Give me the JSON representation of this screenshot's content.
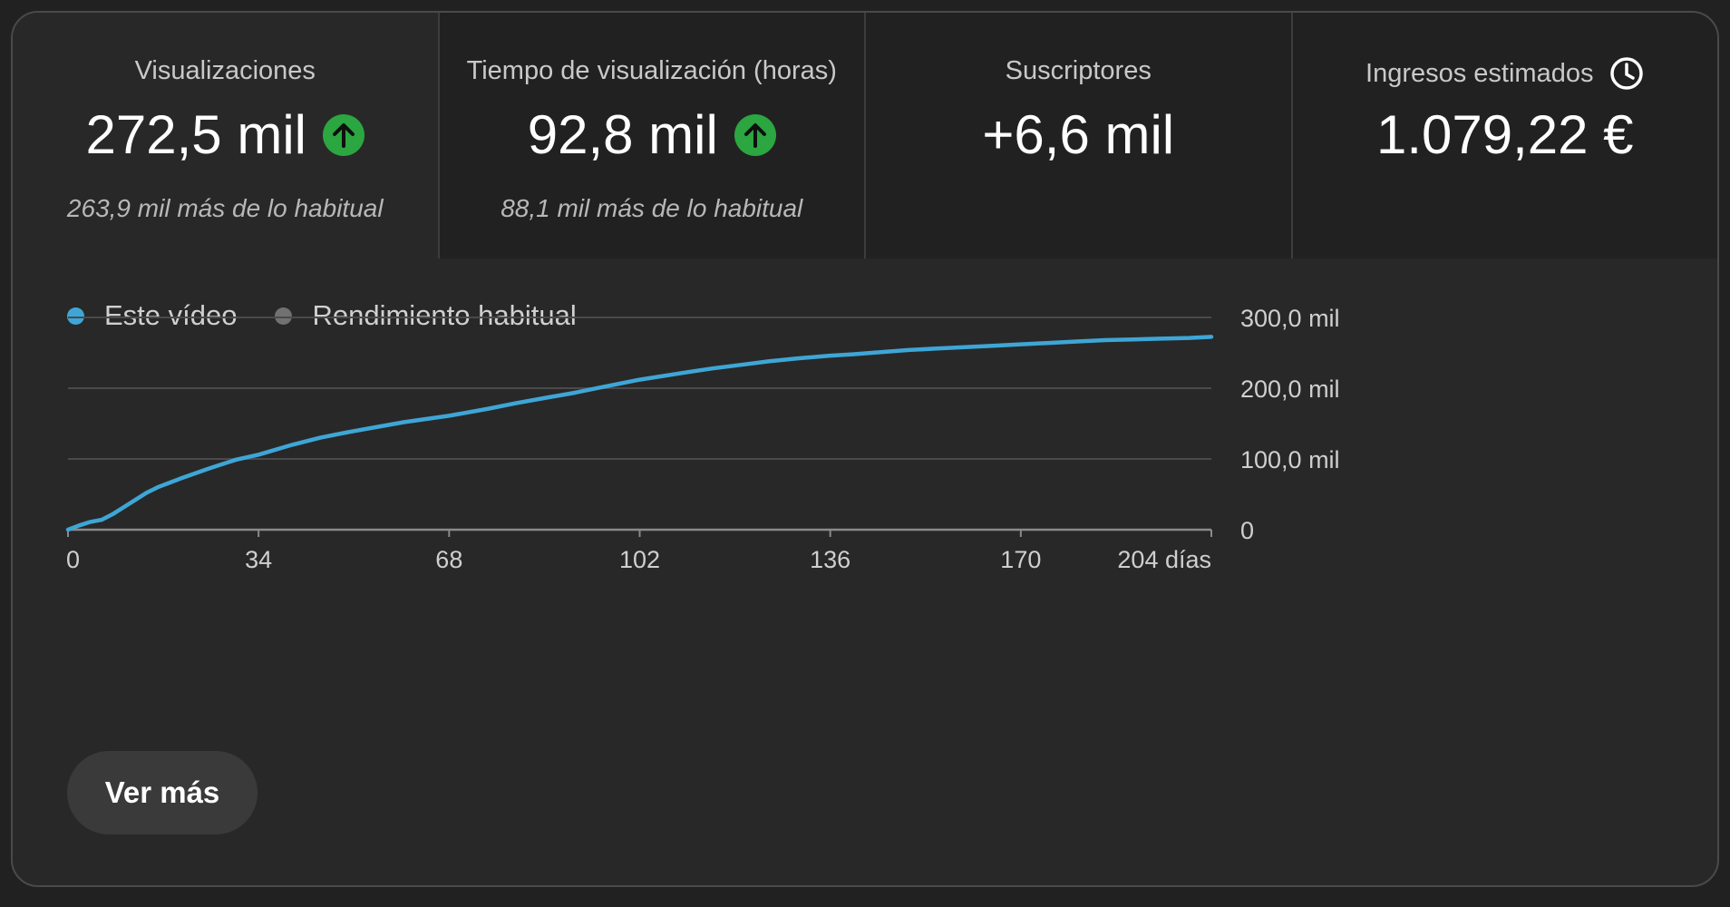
{
  "metrics": [
    {
      "label": "Visualizaciones",
      "value": "272,5 mil",
      "trend": "up",
      "note": "263,9 mil más de lo habitual"
    },
    {
      "label": "Tiempo de visualización (horas)",
      "value": "92,8 mil",
      "trend": "up",
      "note": "88,1 mil más de lo habitual"
    },
    {
      "label": "Suscriptores",
      "value": "+6,6 mil"
    },
    {
      "label": "Ingresos estimados",
      "value": "1.079,22 €",
      "icon": "clock-icon"
    }
  ],
  "legend": [
    {
      "label": "Este vídeo",
      "color": "#3ea6d6"
    },
    {
      "label": "Rendimiento habitual",
      "color": "#717171"
    }
  ],
  "chart_data": {
    "type": "line",
    "x_tick_labels": [
      "0",
      "34",
      "68",
      "102",
      "136",
      "170",
      "204 días"
    ],
    "y_tick_labels": [
      "0",
      "100,0 mil",
      "200,0 mil",
      "300,0 mil"
    ],
    "xlim": [
      0,
      204
    ],
    "ylim": [
      0,
      300000
    ],
    "grid": true,
    "legend_position": "top-left",
    "series": [
      {
        "name": "Este vídeo",
        "color": "#3ea6d6",
        "x": [
          0,
          2,
          4,
          6,
          8,
          10,
          12,
          14,
          16,
          18,
          20,
          25,
          30,
          34,
          40,
          45,
          50,
          55,
          60,
          68,
          75,
          80,
          85,
          90,
          95,
          102,
          110,
          115,
          120,
          125,
          130,
          136,
          140,
          145,
          150,
          155,
          160,
          165,
          170,
          175,
          180,
          185,
          190,
          195,
          200,
          204
        ],
        "y": [
          0,
          6000,
          11000,
          14000,
          22000,
          32000,
          42000,
          52000,
          60000,
          66000,
          72000,
          86000,
          99000,
          106000,
          120000,
          130000,
          138000,
          145000,
          152000,
          161000,
          171000,
          179000,
          186000,
          193000,
          201000,
          212000,
          222000,
          228000,
          233000,
          238000,
          242000,
          246000,
          248000,
          251000,
          254000,
          256000,
          258000,
          260000,
          262000,
          264000,
          266000,
          268000,
          269000,
          270000,
          271000,
          272500
        ]
      }
    ]
  },
  "button": {
    "label": "Ver más"
  }
}
